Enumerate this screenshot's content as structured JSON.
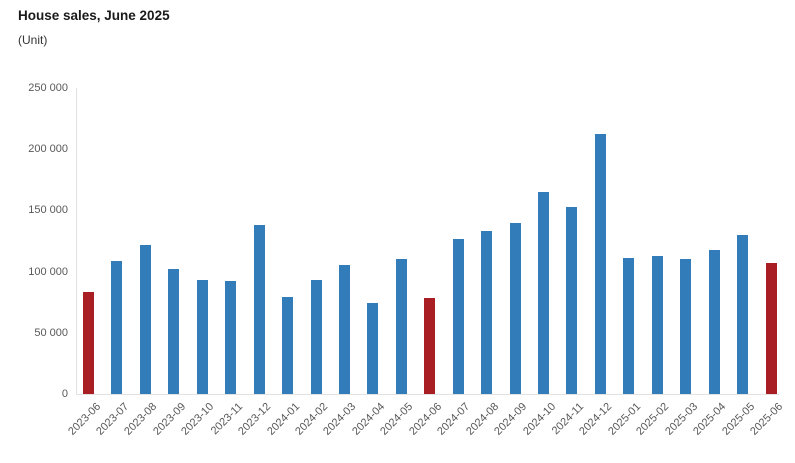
{
  "header": {
    "title": "House sales, June 2025",
    "subtitle": "(Unit)"
  },
  "chart_data": {
    "type": "bar",
    "title": "House sales, June 2025",
    "ylabel": "(Unit)",
    "xlabel": "",
    "ylim": [
      0,
      250000
    ],
    "ytick_values": [
      0,
      50000,
      100000,
      150000,
      200000,
      250000
    ],
    "ytick_labels": [
      "0",
      "50 000",
      "100 000",
      "150 000",
      "200 000",
      "250 000"
    ],
    "grid": false,
    "legend_position": "none",
    "categories": [
      "2023-06",
      "2023-07",
      "2023-08",
      "2023-09",
      "2023-10",
      "2023-11",
      "2023-12",
      "2024-01",
      "2024-02",
      "2024-03",
      "2024-04",
      "2024-05",
      "2024-06",
      "2024-07",
      "2024-08",
      "2024-09",
      "2024-10",
      "2024-11",
      "2024-12",
      "2025-01",
      "2025-02",
      "2025-03",
      "2025-04",
      "2025-05",
      "2025-06"
    ],
    "values": [
      83000,
      109000,
      122000,
      102000,
      93000,
      92500,
      138000,
      79500,
      93000,
      105000,
      74500,
      110000,
      78500,
      126500,
      133500,
      140000,
      165000,
      153000,
      212500,
      111500,
      112500,
      110500,
      118000,
      129500,
      107000
    ],
    "highlight_indices": [
      0,
      12,
      24
    ],
    "colors": {
      "bar": "#327CB9",
      "highlight_bar": "#A91E23",
      "axis_line": "#e2e2e2",
      "tick_text": "#595959",
      "title_text": "#1a1a1a"
    }
  }
}
